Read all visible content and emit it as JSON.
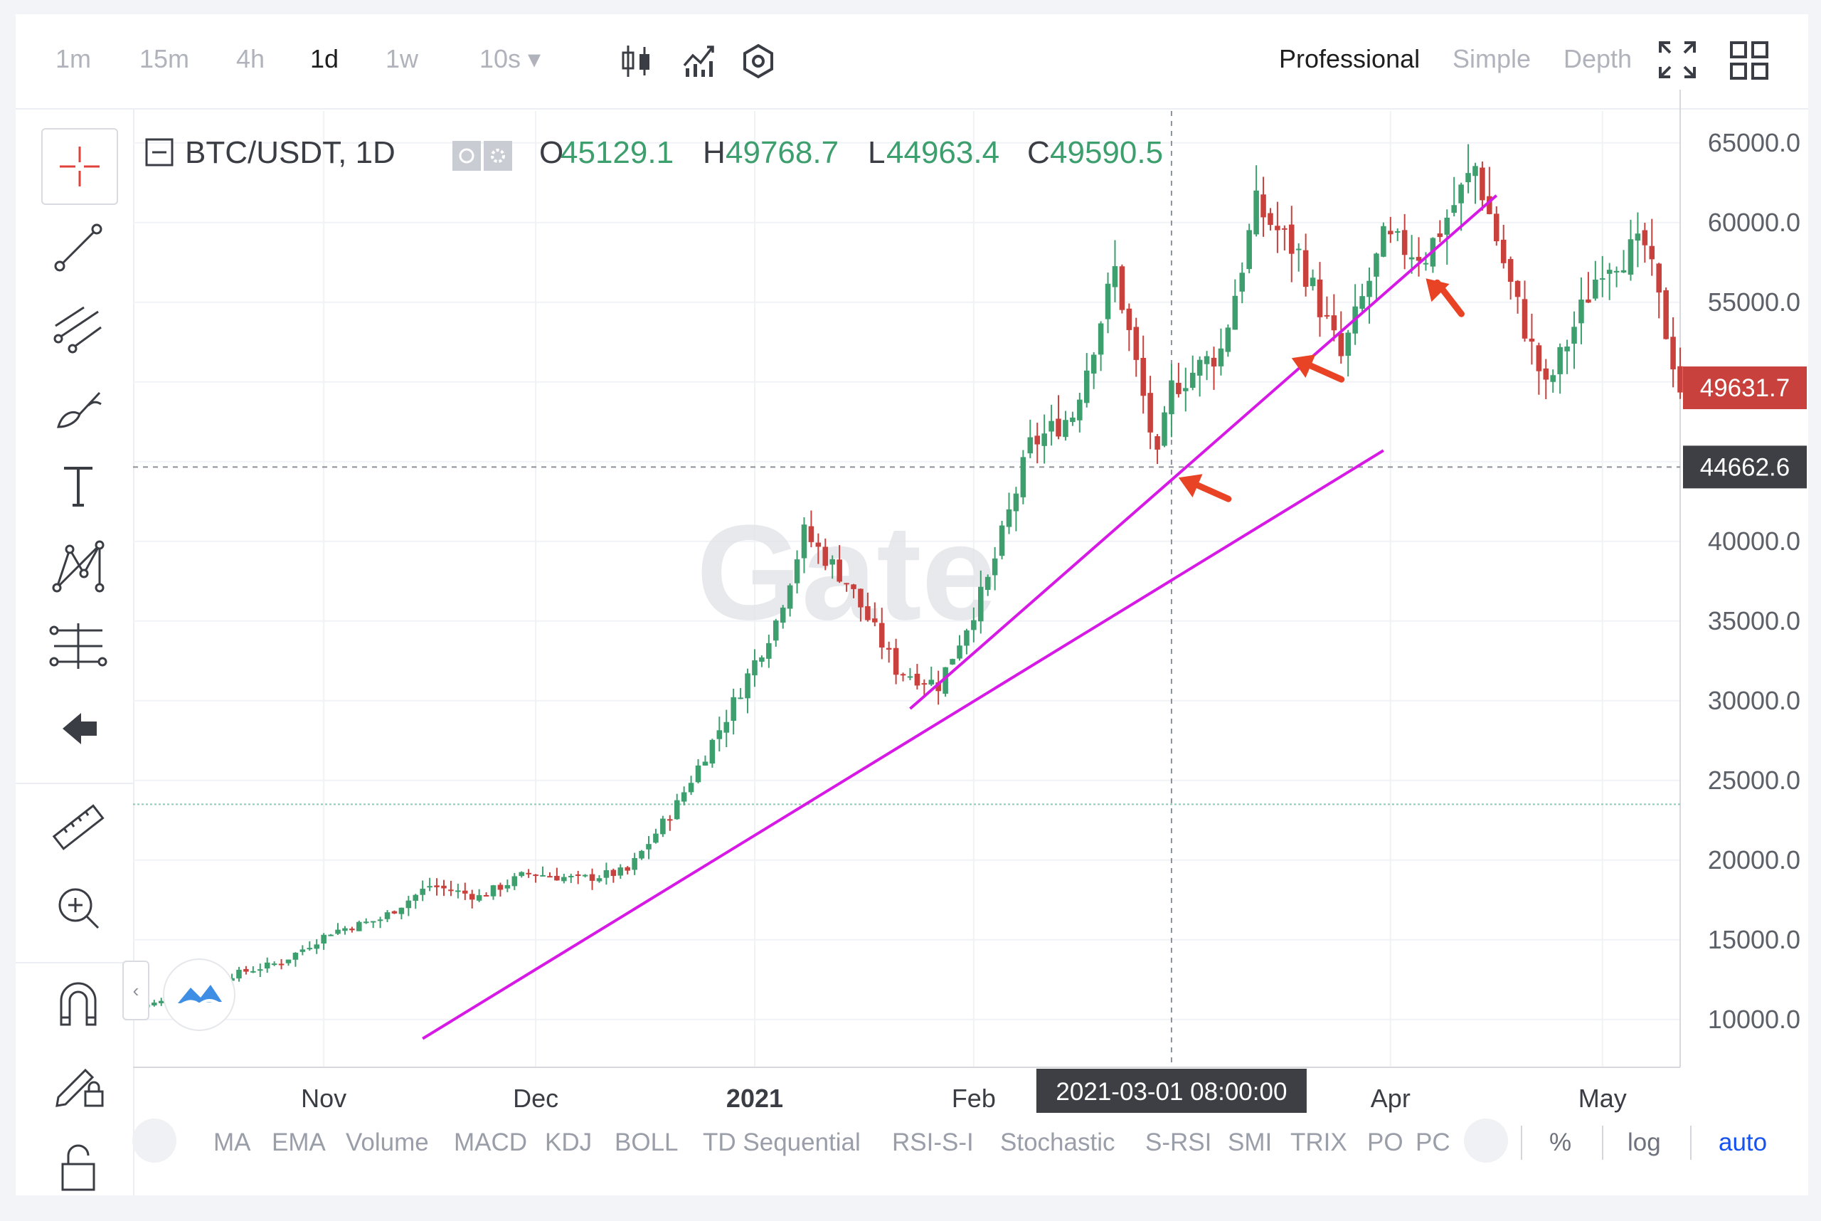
{
  "toolbar": {
    "timeframes": [
      "1m",
      "15m",
      "4h",
      "1d",
      "1w",
      "10s ▾"
    ],
    "modes": [
      "Professional",
      "Simple",
      "Depth"
    ],
    "icons": [
      "candlestick-icon",
      "indicator-icon",
      "settings-icon",
      "fullscreen-icon",
      "grid-layout-icon"
    ]
  },
  "legend": {
    "symbol": "BTC/USDT, 1D",
    "o_label": "O",
    "o_value": "45129.1",
    "h_label": "H",
    "h_value": "49768.7",
    "l_label": "L",
    "l_value": "44963.4",
    "c_label": "C",
    "c_value": "49590.5"
  },
  "price_tags": {
    "last": "49631.7",
    "crosshair": "44662.6"
  },
  "crosshair_date": "2021-03-01 08:00:00",
  "watermark": "Gate",
  "indicators": [
    "MA",
    "EMA",
    "Volume",
    "MACD",
    "KDJ",
    "BOLL",
    "TD Sequential",
    "RSI-S-I",
    "Stochastic",
    "S-RSI",
    "SMI",
    "TRIX",
    "PO",
    "PC"
  ],
  "scale_options": {
    "percent": "%",
    "log": "log",
    "auto": "auto"
  },
  "colors": {
    "up": "#3d9e6e",
    "down": "#c8413d",
    "trendline": "#d719e6",
    "arrow": "#e94326",
    "accent": "#1652f0",
    "last_tag": "#c8413d",
    "crosshair_tag": "#3d3f44"
  },
  "chart_data": {
    "type": "candlestick",
    "title": "BTC/USDT, 1D",
    "xlabel": "",
    "ylabel": "",
    "ylim": [
      7000,
      67000
    ],
    "yticks": [
      10000,
      15000,
      20000,
      25000,
      30000,
      35000,
      40000,
      45000,
      50000,
      55000,
      60000,
      65000
    ],
    "ytick_labels": [
      "10000.0",
      "15000.0",
      "20000.0",
      "25000.0",
      "30000.0",
      "35000.0",
      "40000.0",
      "45000.0",
      "50000.0",
      "55000.0",
      "60000.0",
      "65000.0"
    ],
    "x_labels": [
      {
        "label": "Nov",
        "date": "2020-11-01"
      },
      {
        "label": "Dec",
        "date": "2020-12-01"
      },
      {
        "label": "2021",
        "date": "2021-01-01",
        "bold": true
      },
      {
        "label": "Feb",
        "date": "2021-02-01"
      },
      {
        "label": "Apr",
        "date": "2021-04-01"
      },
      {
        "label": "May",
        "date": "2021-05-01"
      }
    ],
    "xlim": [
      "2020-10-05",
      "2021-05-12"
    ],
    "series": [
      {
        "date": "2020-10-05",
        "close": 10700
      },
      {
        "date": "2020-10-12",
        "close": 11400
      },
      {
        "date": "2020-10-19",
        "close": 12800
      },
      {
        "date": "2020-10-26",
        "close": 13600
      },
      {
        "date": "2020-11-02",
        "close": 15500
      },
      {
        "date": "2020-11-09",
        "close": 16300
      },
      {
        "date": "2020-11-16",
        "close": 18400
      },
      {
        "date": "2020-11-23",
        "close": 17700
      },
      {
        "date": "2020-11-30",
        "close": 19200
      },
      {
        "date": "2020-12-07",
        "close": 18800
      },
      {
        "date": "2020-12-14",
        "close": 19300
      },
      {
        "date": "2020-12-21",
        "close": 23500
      },
      {
        "date": "2020-12-28",
        "close": 29000
      },
      {
        "date": "2021-01-04",
        "close": 35000
      },
      {
        "date": "2021-01-08",
        "close": 40500
      },
      {
        "date": "2021-01-14",
        "close": 37500
      },
      {
        "date": "2021-01-21",
        "close": 32000
      },
      {
        "date": "2021-01-27",
        "close": 31000
      },
      {
        "date": "2021-02-03",
        "close": 37500
      },
      {
        "date": "2021-02-09",
        "close": 46000
      },
      {
        "date": "2021-02-15",
        "close": 48000
      },
      {
        "date": "2021-02-21",
        "close": 57000
      },
      {
        "date": "2021-02-27",
        "close": 45000
      },
      {
        "date": "2021-03-01",
        "close": 49600
      },
      {
        "date": "2021-03-08",
        "close": 52000
      },
      {
        "date": "2021-03-13",
        "close": 61000
      },
      {
        "date": "2021-03-19",
        "close": 58000
      },
      {
        "date": "2021-03-25",
        "close": 51500
      },
      {
        "date": "2021-03-31",
        "close": 58800
      },
      {
        "date": "2021-04-06",
        "close": 58000
      },
      {
        "date": "2021-04-13",
        "close": 63500
      },
      {
        "date": "2021-04-18",
        "close": 56000
      },
      {
        "date": "2021-04-23",
        "close": 49500
      },
      {
        "date": "2021-05-01",
        "close": 57500
      },
      {
        "date": "2021-05-07",
        "close": 58500
      },
      {
        "date": "2021-05-12",
        "close": 49600
      }
    ],
    "trendlines": [
      {
        "from": {
          "date": "2020-11-15",
          "price": 8800
        },
        "to": {
          "date": "2021-03-31",
          "price": 45700
        }
      },
      {
        "from": {
          "date": "2021-01-23",
          "price": 29500
        },
        "to": {
          "date": "2021-04-16",
          "price": 61700
        }
      }
    ],
    "reference_lines": [
      23500,
      44662.6
    ],
    "crosshair": {
      "date": "2021-03-01",
      "price": 44662.6
    },
    "annotations": [
      {
        "type": "arrow",
        "date": "2021-03-02",
        "price": 44000
      },
      {
        "type": "arrow",
        "date": "2021-03-18",
        "price": 51500
      },
      {
        "type": "arrow",
        "date": "2021-04-06",
        "price": 56500
      }
    ]
  }
}
